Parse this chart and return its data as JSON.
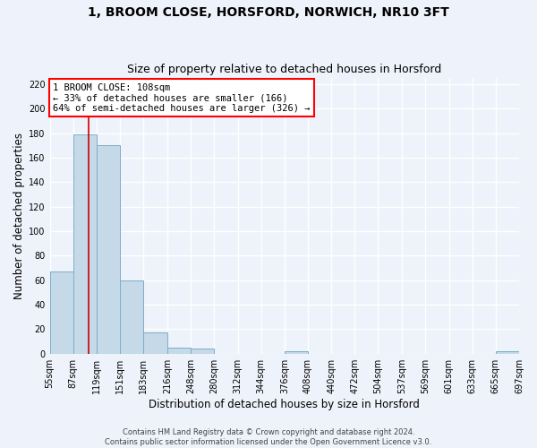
{
  "title": "1, BROOM CLOSE, HORSFORD, NORWICH, NR10 3FT",
  "subtitle": "Size of property relative to detached houses in Horsford",
  "xlabel": "Distribution of detached houses by size in Horsford",
  "ylabel": "Number of detached properties",
  "bar_edges": [
    55,
    87,
    119,
    151,
    183,
    216,
    248,
    280,
    312,
    344,
    376,
    408,
    440,
    472,
    504,
    537,
    569,
    601,
    633,
    665,
    697
  ],
  "bar_heights": [
    67,
    179,
    170,
    60,
    17,
    5,
    4,
    0,
    0,
    0,
    2,
    0,
    0,
    0,
    0,
    0,
    0,
    0,
    0,
    2
  ],
  "bar_color": "#c6d9e8",
  "bar_edgecolor": "#7aaec8",
  "property_line_x": 108,
  "property_line_color": "#cc0000",
  "annotation_title": "1 BROOM CLOSE: 108sqm",
  "annotation_line1": "← 33% of detached houses are smaller (166)",
  "annotation_line2": "64% of semi-detached houses are larger (326) →",
  "ylim": [
    0,
    225
  ],
  "yticks": [
    0,
    20,
    40,
    60,
    80,
    100,
    120,
    140,
    160,
    180,
    200,
    220
  ],
  "tick_labels": [
    "55sqm",
    "87sqm",
    "119sqm",
    "151sqm",
    "183sqm",
    "216sqm",
    "248sqm",
    "280sqm",
    "312sqm",
    "344sqm",
    "376sqm",
    "408sqm",
    "440sqm",
    "472sqm",
    "504sqm",
    "537sqm",
    "569sqm",
    "601sqm",
    "633sqm",
    "665sqm",
    "697sqm"
  ],
  "footer1": "Contains HM Land Registry data © Crown copyright and database right 2024.",
  "footer2": "Contains public sector information licensed under the Open Government Licence v3.0.",
  "background_color": "#eef2fa",
  "grid_color": "#ffffff",
  "title_fontsize": 10,
  "subtitle_fontsize": 9,
  "axis_label_fontsize": 8.5,
  "tick_fontsize": 7,
  "annotation_fontsize": 7.5,
  "footer_fontsize": 6
}
